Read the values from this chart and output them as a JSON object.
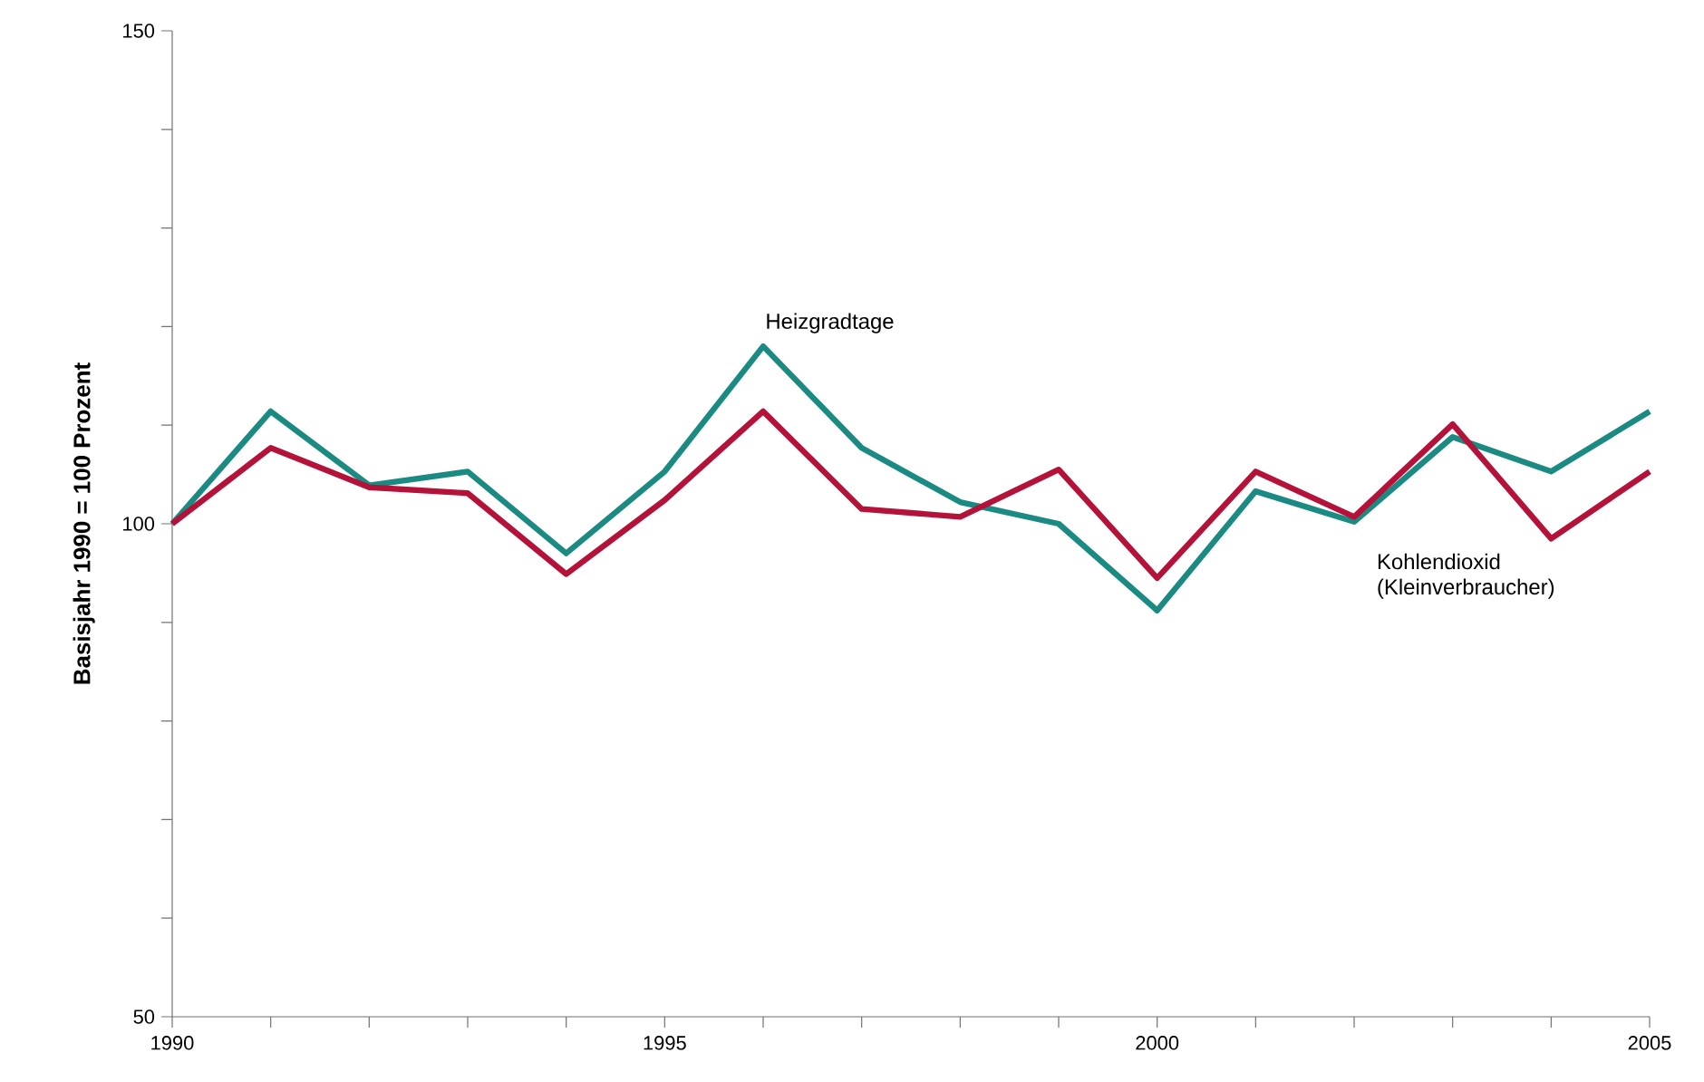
{
  "chart_data": {
    "type": "line",
    "ylabel": "Basisjahr 1990 = 100 Prozent",
    "x": [
      1990,
      1991,
      1992,
      1993,
      1994,
      1995,
      1996,
      1997,
      1998,
      1999,
      2000,
      2001,
      2002,
      2003,
      2004,
      2005
    ],
    "series": [
      {
        "name": "Heizgradtage",
        "color": "#1a8a82",
        "values": [
          100,
          111.4,
          103.9,
          105.3,
          97,
          105.3,
          118,
          107.7,
          102.2,
          100,
          91.2,
          103.3,
          100.2,
          108.8,
          105.3,
          111.4
        ]
      },
      {
        "name": "Kohlendioxid (Kleinverbraucher)",
        "color": "#b5123a",
        "values": [
          100,
          107.7,
          103.7,
          103.1,
          94.9,
          102.4,
          111.4,
          101.5,
          100.7,
          105.5,
          94.5,
          105.3,
          100.7,
          110.1,
          98.5,
          105.3
        ]
      }
    ],
    "xlim": [
      1990,
      2005
    ],
    "ylim": [
      50,
      150
    ],
    "xticks": [
      1990,
      {
        "value": 1991,
        "label": null
      },
      {
        "value": 1992,
        "label": null
      },
      {
        "value": 1993,
        "label": null
      },
      {
        "value": 1994,
        "label": null
      },
      1995,
      {
        "value": 1996,
        "label": null
      },
      {
        "value": 1997,
        "label": null
      },
      {
        "value": 1998,
        "label": null
      },
      {
        "value": 1999,
        "label": null
      },
      2000,
      {
        "value": 2001,
        "label": null
      },
      {
        "value": 2002,
        "label": null
      },
      {
        "value": 2003,
        "label": null
      },
      {
        "value": 2004,
        "label": null
      },
      2005
    ],
    "yticks": [
      50,
      {
        "value": 60,
        "label": null
      },
      {
        "value": 70,
        "label": null
      },
      {
        "value": 80,
        "label": null
      },
      {
        "value": 90,
        "label": null
      },
      100,
      {
        "value": 110,
        "label": null
      },
      {
        "value": 120,
        "label": null
      },
      {
        "value": 130,
        "label": null
      },
      {
        "value": 140,
        "label": null
      },
      150
    ],
    "grid": false,
    "legend": false,
    "marker": "none",
    "line_style": "solid"
  }
}
